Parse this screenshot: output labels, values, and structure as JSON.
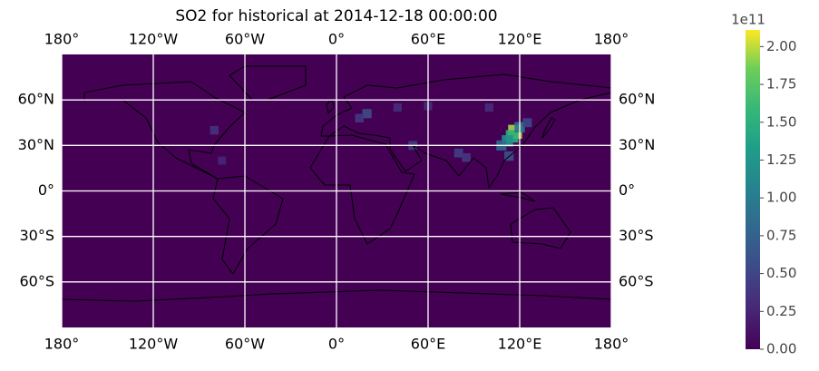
{
  "chart_data": {
    "type": "heatmap",
    "title": "SO2 for historical at 2014-12-18 00:00:00",
    "xlim": [
      -180,
      180
    ],
    "ylim": [
      -90,
      90
    ],
    "xticks": [
      {
        "value": -180,
        "label": "180°"
      },
      {
        "value": -120,
        "label": "120°W"
      },
      {
        "value": -60,
        "label": "60°W"
      },
      {
        "value": 0,
        "label": "0°"
      },
      {
        "value": 60,
        "label": "60°E"
      },
      {
        "value": 120,
        "label": "120°E"
      },
      {
        "value": 180,
        "label": "180°"
      }
    ],
    "yticks": [
      {
        "value": -60,
        "label": "60°S"
      },
      {
        "value": -30,
        "label": "30°S"
      },
      {
        "value": 0,
        "label": "0°"
      },
      {
        "value": 30,
        "label": "30°N"
      },
      {
        "value": 60,
        "label": "60°N"
      }
    ],
    "grid": true,
    "points": {
      "lon": [
        117,
        115,
        112,
        108,
        120,
        113,
        20,
        15,
        50,
        80,
        85,
        -80,
        -75,
        100,
        60,
        40,
        125
      ],
      "lat": [
        39,
        36,
        33,
        30,
        42,
        23,
        51,
        48,
        30,
        25,
        22,
        40,
        20,
        55,
        56,
        55,
        45
      ],
      "values": [
        1.95,
        1.5,
        1.2,
        0.8,
        0.9,
        0.6,
        0.55,
        0.4,
        0.45,
        0.45,
        0.4,
        0.35,
        0.25,
        0.3,
        0.3,
        0.3,
        0.5
      ]
    },
    "colorbar": {
      "lim": [
        0,
        2.11
      ],
      "offset_label": "1e11",
      "ticks": [
        {
          "value": 0,
          "label": "0.00"
        },
        0.25,
        {
          "value": 0.5,
          "label": "0.50"
        },
        0.75,
        {
          "value": 1,
          "label": "1.00"
        },
        1.25,
        {
          "value": 1.5,
          "label": "1.50"
        },
        1.75,
        {
          "value": 2,
          "label": "2.00"
        }
      ]
    }
  }
}
